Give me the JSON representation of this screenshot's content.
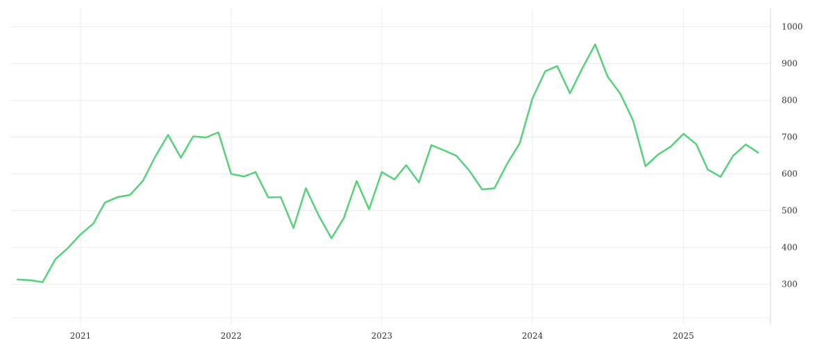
{
  "chart_data": {
    "type": "line",
    "title": "",
    "xlabel": "",
    "ylabel": "",
    "grid": true,
    "legend": "none",
    "line_color": "#5ad17c",
    "x_ticks": [
      "2021",
      "2022",
      "2023",
      "2024",
      "2025"
    ],
    "y_ticks": [
      300,
      400,
      500,
      600,
      700,
      800,
      900,
      1000
    ],
    "xlim": [
      "2020-07-15",
      "2025-07-31"
    ],
    "ylim": [
      190,
      1050
    ],
    "series": [
      {
        "name": "",
        "x": [
          "2020-08-01",
          "2020-09-01",
          "2020-10-01",
          "2020-11-01",
          "2020-12-01",
          "2021-01-01",
          "2021-02-01",
          "2021-03-01",
          "2021-04-01",
          "2021-05-01",
          "2021-06-01",
          "2021-07-01",
          "2021-08-01",
          "2021-09-01",
          "2021-10-01",
          "2021-11-01",
          "2021-12-01",
          "2022-01-01",
          "2022-02-01",
          "2022-03-01",
          "2022-04-01",
          "2022-05-01",
          "2022-06-01",
          "2022-07-01",
          "2022-08-01",
          "2022-09-01",
          "2022-10-01",
          "2022-11-01",
          "2022-12-01",
          "2023-01-01",
          "2023-02-01",
          "2023-03-01",
          "2023-04-01",
          "2023-05-01",
          "2023-06-01",
          "2023-07-01",
          "2023-08-01",
          "2023-09-01",
          "2023-10-01",
          "2023-11-01",
          "2023-12-01",
          "2024-01-01",
          "2024-02-01",
          "2024-03-01",
          "2024-04-01",
          "2024-05-01",
          "2024-06-01",
          "2024-07-01",
          "2024-08-01",
          "2024-09-01",
          "2024-10-01",
          "2024-11-01",
          "2024-12-01",
          "2025-01-01",
          "2025-02-01",
          "2025-03-01",
          "2025-04-01",
          "2025-05-01",
          "2025-06-01",
          "2025-07-01"
        ],
        "values": [
          313,
          311,
          306,
          368,
          398,
          436,
          465,
          522,
          537,
          543,
          581,
          647,
          706,
          644,
          702,
          699,
          713,
          600,
          593,
          605,
          536,
          537,
          453,
          561,
          487,
          425,
          480,
          581,
          504,
          605,
          585,
          624,
          577,
          678,
          664,
          649,
          609,
          558,
          561,
          628,
          683,
          805,
          879,
          893,
          819,
          887,
          952,
          865,
          818,
          745,
          621,
          653,
          674,
          709,
          681,
          612,
          592,
          649,
          680,
          658
        ]
      }
    ]
  }
}
